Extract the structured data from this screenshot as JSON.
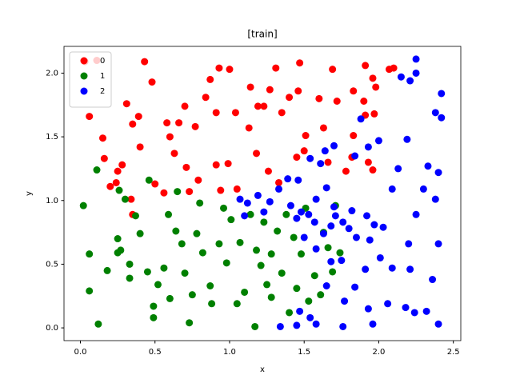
{
  "chart_data": {
    "type": "scatter",
    "title": "[train]",
    "xlabel": "x",
    "ylabel": "y",
    "xlim": [
      -0.11,
      2.55
    ],
    "ylim": [
      -0.1,
      2.21
    ],
    "xticks": [
      {
        "value": 0,
        "label": "0.0"
      },
      {
        "value": 0.5,
        "label": "0.5"
      },
      {
        "value": 1,
        "label": "1.0"
      },
      {
        "value": 1.5,
        "label": "1.5"
      },
      {
        "value": 2,
        "label": "2.0"
      },
      {
        "value": 2.5,
        "label": "2.5"
      }
    ],
    "yticks": [
      {
        "value": 0,
        "label": "0.0"
      },
      {
        "value": 0.5,
        "label": "0.5"
      },
      {
        "value": 1,
        "label": "1.0"
      },
      {
        "value": 1.5,
        "label": "1.5"
      },
      {
        "value": 2,
        "label": "2.0"
      }
    ],
    "grid": false,
    "legend": "upper left",
    "series": [
      {
        "name": "0",
        "color": "#ff0000",
        "x": [
          0.03,
          0.11,
          0.43,
          0.93,
          1.47,
          1.69,
          1.91,
          2.07,
          2.1,
          0.06,
          0.15,
          0.16,
          0.25,
          0.28,
          0.31,
          0.35,
          0.39,
          0.48,
          0.58,
          0.6,
          0.66,
          0.7,
          0.77,
          0.84,
          0.87,
          0.91,
          0.91,
          1.0,
          1.04,
          1.14,
          1.19,
          1.23,
          1.27,
          1.31,
          1.35,
          1.4,
          1.46,
          1.51,
          1.6,
          1.72,
          1.83,
          1.9,
          1.96,
          1.98,
          1.97,
          1.78,
          1.82,
          1.93,
          1.96,
          0.34,
          0.5,
          0.56,
          0.63,
          0.71,
          0.4,
          0.79,
          0.99,
          1.05,
          1.13,
          1.18,
          1.26,
          1.33,
          1.45,
          1.5,
          1.63,
          1.66,
          1.83,
          1.91,
          0.2,
          0.35,
          0.24,
          0.73,
          0.94
        ],
        "values": [
          2.09,
          2.1,
          2.09,
          2.04,
          2.08,
          2.03,
          2.06,
          2.03,
          2.04,
          1.66,
          1.49,
          1.33,
          1.23,
          1.28,
          1.76,
          1.6,
          1.66,
          1.93,
          1.61,
          1.5,
          1.61,
          1.74,
          1.58,
          1.81,
          1.95,
          1.28,
          1.69,
          2.03,
          1.69,
          1.89,
          1.74,
          1.74,
          1.87,
          2.04,
          1.69,
          1.81,
          1.86,
          1.51,
          1.8,
          1.78,
          1.86,
          1.78,
          1.96,
          1.89,
          1.68,
          1.23,
          1.34,
          1.3,
          1.24,
          1.01,
          1.13,
          1.06,
          1.37,
          1.26,
          1.42,
          1.16,
          1.29,
          1.09,
          1.57,
          1.37,
          1.23,
          1.14,
          1.34,
          1.39,
          1.57,
          1.3,
          1.51,
          1.67,
          1.11,
          0.89,
          1.14,
          1.07,
          1.08
        ]
      },
      {
        "name": "1",
        "color": "#008000",
        "x": [
          0.02,
          0.11,
          0.06,
          0.06,
          0.12,
          0.18,
          0.25,
          0.25,
          0.27,
          0.33,
          0.33,
          0.37,
          0.4,
          0.45,
          0.49,
          0.49,
          0.52,
          0.56,
          0.59,
          0.6,
          0.64,
          0.68,
          0.7,
          0.73,
          0.75,
          0.78,
          0.8,
          0.82,
          0.87,
          0.88,
          0.93,
          0.98,
          1.01,
          1.05,
          1.07,
          1.1,
          1.14,
          1.18,
          1.21,
          1.23,
          1.25,
          1.28,
          1.28,
          1.32,
          1.35,
          1.38,
          1.4,
          1.43,
          1.45,
          1.48,
          1.51,
          1.53,
          1.57,
          1.61,
          1.63,
          1.66,
          1.69,
          1.71,
          1.74,
          1.17,
          0.96,
          0.65,
          0.46,
          0.3,
          0.26
        ],
        "values": [
          0.96,
          1.24,
          0.58,
          0.29,
          0.03,
          0.45,
          0.7,
          0.59,
          0.61,
          0.5,
          0.39,
          0.88,
          0.74,
          0.44,
          0.17,
          0.08,
          0.34,
          0.47,
          0.89,
          0.23,
          0.76,
          0.66,
          0.43,
          0.04,
          0.26,
          0.74,
          0.98,
          0.59,
          0.33,
          0.19,
          0.66,
          0.51,
          0.85,
          0.19,
          0.67,
          0.28,
          0.89,
          0.61,
          0.49,
          0.83,
          0.34,
          0.24,
          0.58,
          0.76,
          0.43,
          0.89,
          0.12,
          0.71,
          0.31,
          0.58,
          0.94,
          0.21,
          0.41,
          0.26,
          0.75,
          0.63,
          0.44,
          0.96,
          0.59,
          0.01,
          0.94,
          1.07,
          1.16,
          1.01,
          1.08
        ]
      },
      {
        "name": "2",
        "color": "#0000ff",
        "x": [
          2.25,
          2.25,
          2.21,
          2.15,
          2.42,
          2.42,
          2.38,
          2.3,
          2.4,
          2.33,
          2.38,
          2.4,
          2.25,
          2.09,
          2.13,
          2.19,
          2.0,
          1.93,
          1.88,
          1.84,
          1.7,
          1.64,
          1.65,
          1.61,
          1.58,
          1.54,
          1.46,
          1.39,
          1.33,
          1.27,
          1.23,
          1.19,
          1.12,
          1.1,
          1.07,
          1.48,
          1.45,
          1.53,
          1.57,
          1.63,
          1.68,
          1.71,
          1.76,
          1.8,
          1.85,
          1.82,
          1.92,
          1.97,
          2.03,
          1.94,
          1.91,
          2.01,
          2.09,
          2.2,
          2.21,
          2.36,
          1.77,
          1.84,
          1.93,
          1.96,
          2.06,
          2.18,
          2.24,
          2.32,
          2.4,
          1.76,
          1.58,
          1.54,
          1.47,
          1.34,
          1.45,
          1.65,
          1.68,
          1.58,
          1.75,
          1.5,
          1.41,
          1.7
        ],
        "values": [
          2.11,
          2.0,
          1.94,
          1.97,
          1.84,
          1.65,
          1.69,
          1.09,
          1.22,
          1.27,
          1.01,
          0.66,
          0.89,
          1.09,
          1.25,
          1.48,
          1.47,
          1.42,
          1.64,
          1.35,
          1.43,
          1.39,
          1.1,
          1.29,
          1.01,
          1.33,
          1.16,
          1.17,
          1.09,
          0.99,
          0.91,
          1.04,
          0.98,
          0.88,
          1.01,
          0.91,
          0.86,
          0.89,
          0.83,
          0.74,
          0.8,
          0.88,
          0.83,
          0.78,
          0.71,
          0.92,
          0.88,
          0.81,
          0.79,
          0.69,
          0.46,
          0.55,
          0.47,
          0.66,
          0.46,
          0.38,
          0.21,
          0.32,
          0.15,
          0.03,
          0.19,
          0.16,
          0.12,
          0.13,
          0.03,
          0.01,
          0.03,
          0.08,
          0.13,
          0.01,
          0.02,
          0.33,
          0.52,
          0.62,
          0.53,
          0.71,
          0.96,
          0.95
        ]
      }
    ]
  }
}
